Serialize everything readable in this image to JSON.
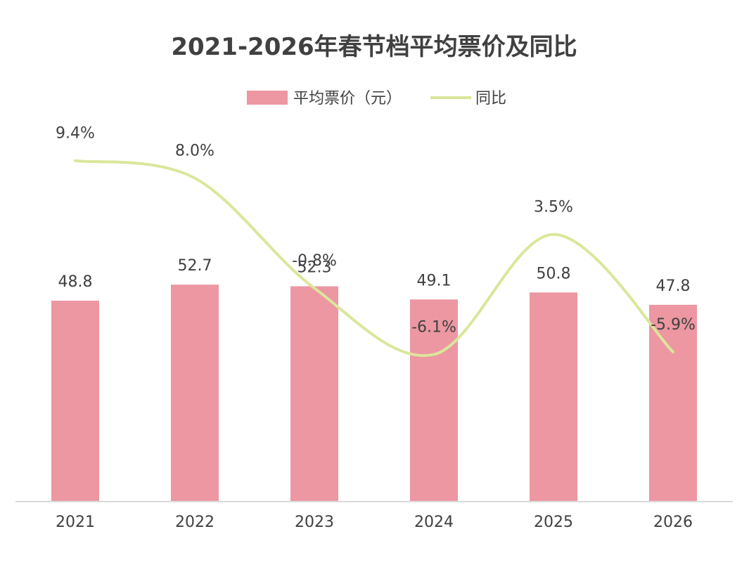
{
  "chart_data": {
    "type": "bar",
    "title": "2021-2026年春节档平均票价及同比",
    "categories": [
      "2021",
      "2022",
      "2023",
      "2024",
      "2025",
      "2026"
    ],
    "series": [
      {
        "name": "平均票价（元）",
        "kind": "bar",
        "color": "#ec97a2",
        "values": [
          48.8,
          52.7,
          52.3,
          49.1,
          50.8,
          47.8
        ],
        "labels": [
          "48.8",
          "52.7",
          "52.3",
          "49.1",
          "50.8",
          "47.8"
        ]
      },
      {
        "name": "同比",
        "kind": "line",
        "color": "#dbe69a",
        "values": [
          9.4,
          8.0,
          -0.8,
          -6.1,
          3.5,
          -5.9
        ],
        "labels": [
          "9.4%",
          "8.0%",
          "-0.8%",
          "-6.1%",
          "3.5%",
          "-5.9%"
        ]
      }
    ],
    "xlabel": "",
    "ylabel": "",
    "grid": false,
    "legend": "top-center"
  }
}
